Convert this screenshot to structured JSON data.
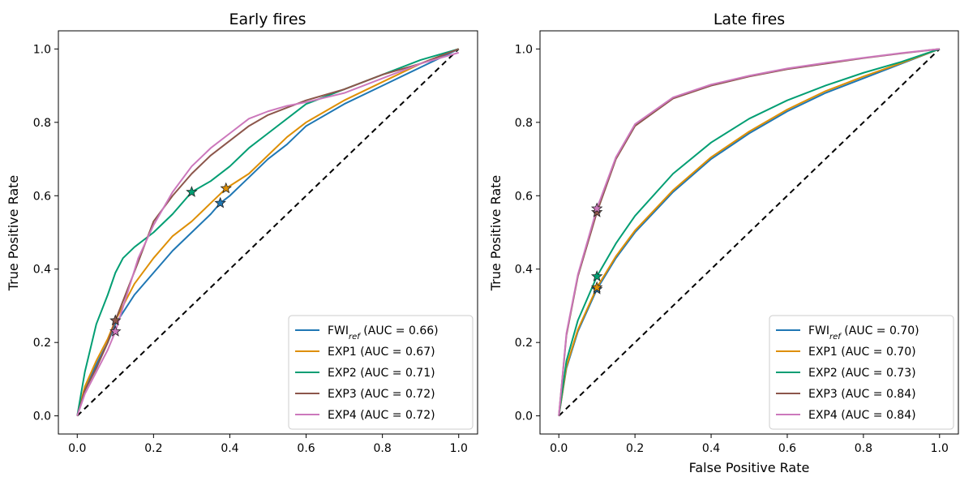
{
  "chart_data": [
    {
      "type": "line",
      "title": "Early fires",
      "xlabel": "",
      "ylabel": "True Positive Rate",
      "xlim": [
        0,
        1
      ],
      "ylim": [
        0,
        1
      ],
      "xticks": [
        "0.0",
        "0.2",
        "0.4",
        "0.6",
        "0.8",
        "1.0"
      ],
      "yticks": [
        "0.0",
        "0.2",
        "0.4",
        "0.6",
        "0.8",
        "1.0"
      ],
      "grid": false,
      "legend_position": "lower-right",
      "diagonal": {
        "x": [
          0,
          1
        ],
        "y": [
          0,
          1
        ],
        "style": "dashed",
        "color": "#000000"
      },
      "series": [
        {
          "name": "FWI",
          "sub": "ref",
          "auc_text": " (AUC = 0.66)",
          "color": "#1f77b4",
          "x": [
            0,
            0.02,
            0.05,
            0.08,
            0.1,
            0.15,
            0.2,
            0.25,
            0.3,
            0.35,
            0.375,
            0.4,
            0.45,
            0.5,
            0.55,
            0.6,
            0.7,
            0.8,
            0.9,
            1.0
          ],
          "y": [
            0,
            0.07,
            0.14,
            0.2,
            0.25,
            0.33,
            0.39,
            0.45,
            0.5,
            0.55,
            0.58,
            0.6,
            0.65,
            0.7,
            0.74,
            0.79,
            0.85,
            0.9,
            0.95,
            1.0
          ],
          "marker": [
            0.375,
            0.58
          ]
        },
        {
          "name": "EXP1",
          "sub": "",
          "auc_text": " (AUC = 0.67)",
          "color": "#de8f05",
          "x": [
            0,
            0.02,
            0.05,
            0.08,
            0.1,
            0.15,
            0.2,
            0.25,
            0.3,
            0.35,
            0.39,
            0.45,
            0.5,
            0.55,
            0.6,
            0.7,
            0.8,
            0.9,
            1.0
          ],
          "y": [
            0,
            0.08,
            0.15,
            0.21,
            0.26,
            0.36,
            0.43,
            0.49,
            0.53,
            0.58,
            0.62,
            0.66,
            0.71,
            0.76,
            0.8,
            0.86,
            0.91,
            0.96,
            1.0
          ],
          "marker": [
            0.39,
            0.62
          ]
        },
        {
          "name": "EXP2",
          "sub": "",
          "auc_text": " (AUC = 0.71)",
          "color": "#029e73",
          "x": [
            0,
            0.02,
            0.05,
            0.08,
            0.1,
            0.12,
            0.15,
            0.2,
            0.25,
            0.3,
            0.35,
            0.4,
            0.45,
            0.5,
            0.6,
            0.7,
            0.8,
            0.9,
            1.0
          ],
          "y": [
            0,
            0.12,
            0.25,
            0.33,
            0.39,
            0.43,
            0.46,
            0.5,
            0.55,
            0.61,
            0.64,
            0.68,
            0.73,
            0.77,
            0.85,
            0.89,
            0.93,
            0.97,
            1.0
          ],
          "marker": [
            0.3,
            0.61
          ]
        },
        {
          "name": "EXP3",
          "sub": "",
          "auc_text": " (AUC = 0.72)",
          "color": "#8c564b",
          "x": [
            0,
            0.02,
            0.05,
            0.08,
            0.1,
            0.13,
            0.16,
            0.2,
            0.25,
            0.3,
            0.35,
            0.4,
            0.45,
            0.5,
            0.55,
            0.6,
            0.7,
            0.8,
            0.9,
            1.0
          ],
          "y": [
            0,
            0.07,
            0.13,
            0.2,
            0.26,
            0.34,
            0.42,
            0.53,
            0.6,
            0.66,
            0.71,
            0.75,
            0.79,
            0.82,
            0.84,
            0.86,
            0.89,
            0.93,
            0.96,
            1.0
          ],
          "marker": [
            0.1,
            0.26
          ]
        },
        {
          "name": "EXP4",
          "sub": "",
          "auc_text": " (AUC = 0.72)",
          "color": "#cc78bc",
          "x": [
            0,
            0.02,
            0.05,
            0.08,
            0.1,
            0.13,
            0.16,
            0.2,
            0.25,
            0.3,
            0.35,
            0.4,
            0.45,
            0.5,
            0.55,
            0.6,
            0.7,
            0.8,
            0.9,
            1.0
          ],
          "y": [
            0,
            0.06,
            0.12,
            0.18,
            0.23,
            0.33,
            0.43,
            0.52,
            0.61,
            0.68,
            0.73,
            0.77,
            0.81,
            0.83,
            0.845,
            0.855,
            0.88,
            0.92,
            0.96,
            0.99
          ],
          "marker": [
            0.1,
            0.23
          ]
        }
      ]
    },
    {
      "type": "line",
      "title": "Late fires",
      "xlabel": "False Positive Rate",
      "ylabel": "True Positive Rate",
      "xlim": [
        0,
        1
      ],
      "ylim": [
        0,
        1
      ],
      "xticks": [
        "0.0",
        "0.2",
        "0.4",
        "0.6",
        "0.8",
        "1.0"
      ],
      "yticks": [
        "0.0",
        "0.2",
        "0.4",
        "0.6",
        "0.8",
        "1.0"
      ],
      "grid": false,
      "legend_position": "lower-right",
      "diagonal": {
        "x": [
          0,
          1
        ],
        "y": [
          0,
          1
        ],
        "style": "dashed",
        "color": "#000000"
      },
      "series": [
        {
          "name": "FWI",
          "sub": "ref",
          "auc_text": " (AUC = 0.70)",
          "color": "#1f77b4",
          "x": [
            0,
            0.02,
            0.05,
            0.1,
            0.15,
            0.2,
            0.3,
            0.4,
            0.5,
            0.6,
            0.7,
            0.8,
            0.9,
            1.0
          ],
          "y": [
            0,
            0.13,
            0.23,
            0.345,
            0.43,
            0.5,
            0.61,
            0.7,
            0.77,
            0.83,
            0.88,
            0.92,
            0.96,
            1.0
          ],
          "marker": [
            0.1,
            0.345
          ]
        },
        {
          "name": "EXP1",
          "sub": "",
          "auc_text": " (AUC = 0.70)",
          "color": "#de8f05",
          "x": [
            0,
            0.02,
            0.05,
            0.1,
            0.15,
            0.2,
            0.3,
            0.4,
            0.5,
            0.6,
            0.7,
            0.8,
            0.9,
            1.0
          ],
          "y": [
            0,
            0.135,
            0.235,
            0.35,
            0.435,
            0.505,
            0.615,
            0.705,
            0.775,
            0.835,
            0.885,
            0.925,
            0.962,
            1.0
          ],
          "marker": [
            0.1,
            0.35
          ]
        },
        {
          "name": "EXP2",
          "sub": "",
          "auc_text": " (AUC = 0.73)",
          "color": "#029e73",
          "x": [
            0,
            0.02,
            0.05,
            0.1,
            0.15,
            0.2,
            0.3,
            0.4,
            0.5,
            0.6,
            0.7,
            0.8,
            0.9,
            1.0
          ],
          "y": [
            0,
            0.15,
            0.26,
            0.38,
            0.47,
            0.545,
            0.66,
            0.745,
            0.81,
            0.86,
            0.9,
            0.935,
            0.965,
            1.0
          ],
          "marker": [
            0.1,
            0.38
          ]
        },
        {
          "name": "EXP3",
          "sub": "",
          "auc_text": " (AUC = 0.84)",
          "color": "#8c564b",
          "x": [
            0,
            0.02,
            0.05,
            0.1,
            0.15,
            0.2,
            0.3,
            0.4,
            0.5,
            0.6,
            0.7,
            0.8,
            0.9,
            1.0
          ],
          "y": [
            0,
            0.22,
            0.38,
            0.555,
            0.7,
            0.79,
            0.865,
            0.9,
            0.925,
            0.945,
            0.96,
            0.975,
            0.988,
            1.0
          ],
          "marker": [
            0.1,
            0.555
          ]
        },
        {
          "name": "EXP4",
          "sub": "",
          "auc_text": " (AUC = 0.84)",
          "color": "#cc78bc",
          "x": [
            0,
            0.02,
            0.05,
            0.1,
            0.15,
            0.2,
            0.3,
            0.4,
            0.5,
            0.6,
            0.7,
            0.8,
            0.9,
            1.0
          ],
          "y": [
            0,
            0.225,
            0.385,
            0.565,
            0.705,
            0.795,
            0.868,
            0.903,
            0.927,
            0.947,
            0.962,
            0.976,
            0.989,
            1.0
          ],
          "marker": [
            0.1,
            0.565
          ]
        }
      ]
    }
  ]
}
